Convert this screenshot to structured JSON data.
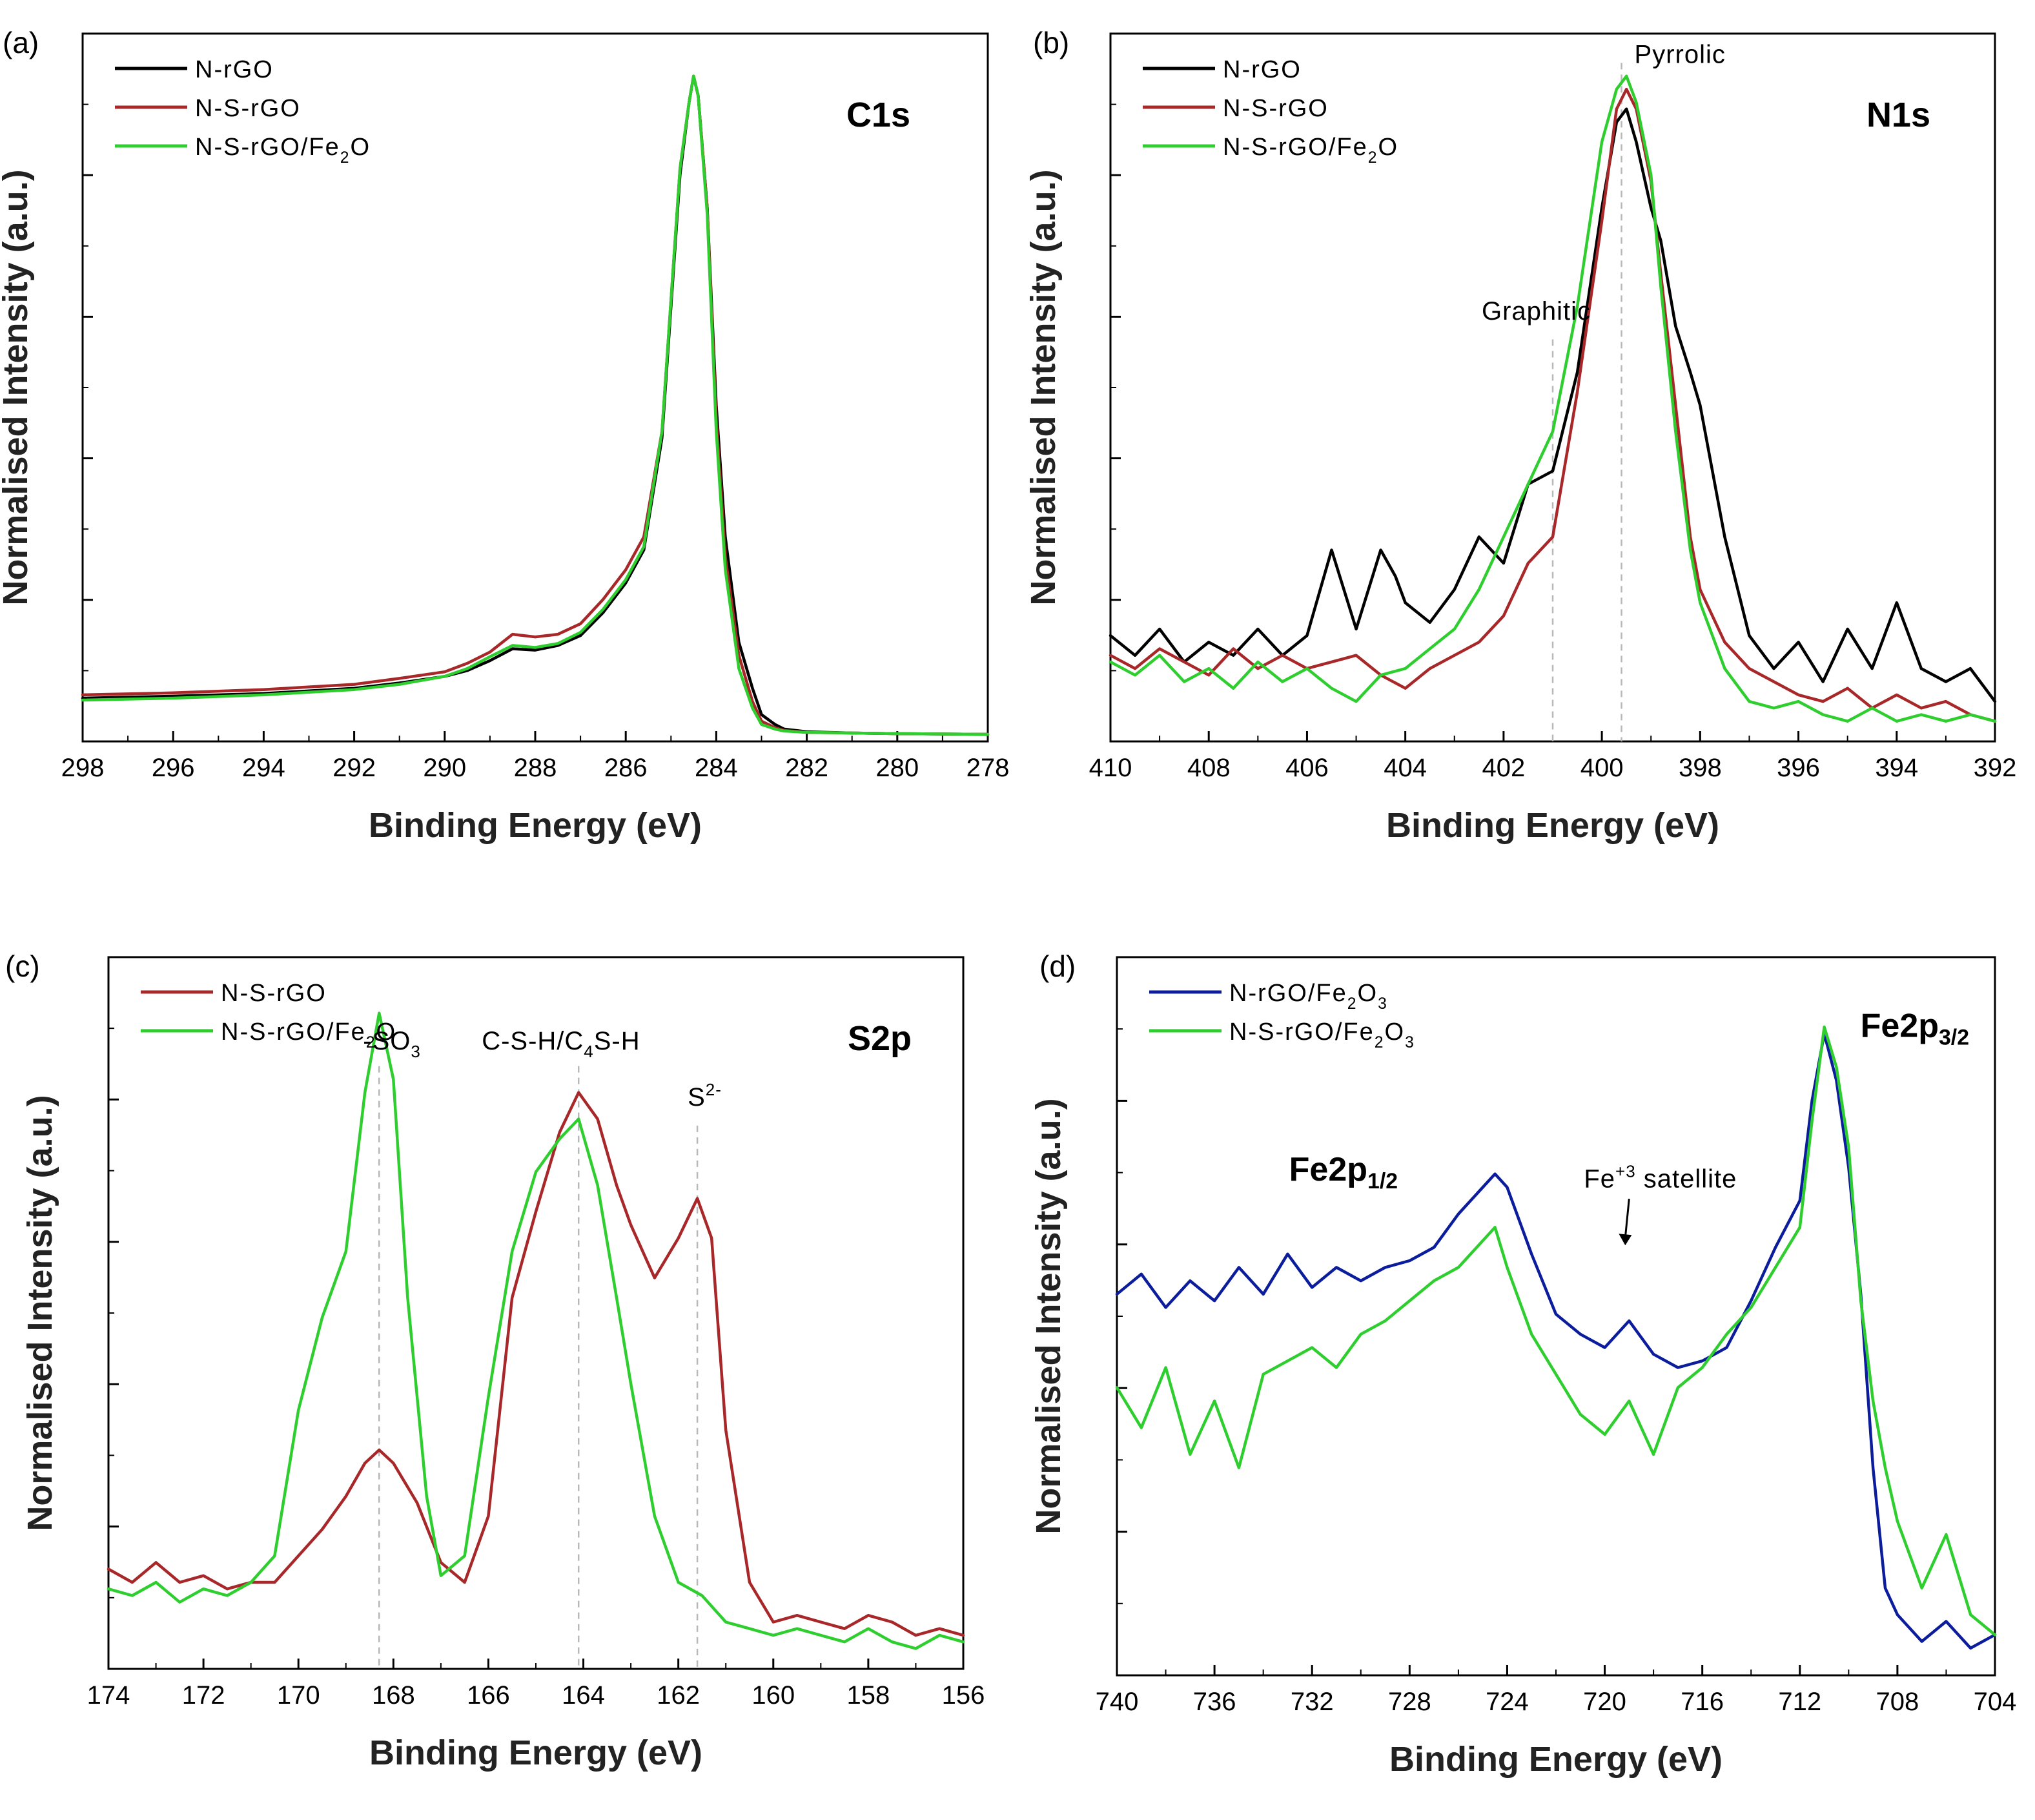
{
  "figure": {
    "panels": [
      {
        "panel_label": "(a)",
        "core_level": "C1s",
        "xlabel": "Binding Energy (eV)",
        "ylabel": "Normalised Intensity (a.u.)"
      },
      {
        "panel_label": "(b)",
        "core_level": "N1s",
        "xlabel": "Binding Energy (eV)",
        "ylabel": "Normalised Intensity (a.u.)"
      },
      {
        "panel_label": "(c)",
        "core_level": "S2p",
        "xlabel": "Binding Energy (eV)",
        "ylabel": "Normalised Intensity (a.u.)"
      },
      {
        "panel_label": "(d)",
        "core_level": "Fe2p3/2",
        "xlabel": "Binding Energy (eV)",
        "ylabel": "Normalised Intensity (a.u.)"
      }
    ]
  },
  "chart_data": [
    {
      "type": "line",
      "panel": "(a)",
      "title": "C1s",
      "xlabel": "Binding Energy (eV)",
      "ylabel": "Normalised Intensity (a.u.)",
      "xlim": [
        298,
        278
      ],
      "ylim": [
        0,
        1
      ],
      "xticks": [
        298,
        296,
        294,
        292,
        290,
        288,
        286,
        284,
        282,
        280,
        278
      ],
      "legend_position": "top-left",
      "series": [
        {
          "name": "N-rGO",
          "color": "#000000",
          "x": [
            298,
            296,
            294,
            292,
            291,
            290,
            289.5,
            289,
            288.5,
            288,
            287.5,
            287,
            286.5,
            286,
            285.6,
            285.2,
            285,
            284.8,
            284.6,
            284.5,
            284.4,
            284.2,
            284,
            283.8,
            283.5,
            283.2,
            283,
            282.7,
            282.5,
            282,
            281,
            280,
            278
          ],
          "y": [
            0.055,
            0.058,
            0.062,
            0.07,
            0.078,
            0.088,
            0.097,
            0.112,
            0.13,
            0.128,
            0.135,
            0.15,
            0.185,
            0.23,
            0.28,
            0.45,
            0.65,
            0.85,
            0.96,
            1.0,
            0.97,
            0.8,
            0.5,
            0.3,
            0.14,
            0.07,
            0.03,
            0.015,
            0.008,
            0.004,
            0.002,
            0.001,
            0.0
          ]
        },
        {
          "name": "N-S-rGO",
          "color": "#a8282a",
          "x": [
            298,
            296,
            294,
            292,
            291,
            290,
            289.5,
            289,
            288.5,
            288,
            287.5,
            287,
            286.5,
            286,
            285.6,
            285.2,
            285,
            284.8,
            284.6,
            284.5,
            284.4,
            284.2,
            284,
            283.8,
            283.5,
            283.2,
            283,
            282.7,
            282.5,
            282,
            281,
            280,
            278
          ],
          "y": [
            0.06,
            0.063,
            0.068,
            0.076,
            0.085,
            0.095,
            0.108,
            0.125,
            0.152,
            0.148,
            0.152,
            0.168,
            0.205,
            0.25,
            0.3,
            0.46,
            0.66,
            0.86,
            0.96,
            1.0,
            0.97,
            0.8,
            0.48,
            0.27,
            0.12,
            0.05,
            0.02,
            0.01,
            0.006,
            0.003,
            0.002,
            0.001,
            0.0
          ]
        },
        {
          "name": "N-S-rGO/Fe2O",
          "color": "#2fce2f",
          "x": [
            298,
            296,
            294,
            292,
            291,
            290,
            289.5,
            289,
            288.5,
            288,
            287.5,
            287,
            286.5,
            286,
            285.6,
            285.2,
            285,
            284.8,
            284.6,
            284.5,
            284.4,
            284.2,
            284,
            283.8,
            283.5,
            283.2,
            283,
            282.7,
            282.5,
            282,
            281,
            280,
            278
          ],
          "y": [
            0.052,
            0.055,
            0.06,
            0.068,
            0.076,
            0.088,
            0.1,
            0.118,
            0.135,
            0.132,
            0.138,
            0.155,
            0.19,
            0.235,
            0.285,
            0.46,
            0.66,
            0.86,
            0.96,
            1.0,
            0.97,
            0.79,
            0.46,
            0.25,
            0.1,
            0.04,
            0.015,
            0.008,
            0.005,
            0.003,
            0.002,
            0.001,
            0.0
          ]
        }
      ]
    },
    {
      "type": "line",
      "panel": "(b)",
      "title": "N1s",
      "xlabel": "Binding Energy (eV)",
      "ylabel": "Normalised Intensity (a.u.)",
      "xlim": [
        410,
        392
      ],
      "ylim": [
        0,
        1
      ],
      "xticks": [
        410,
        408,
        406,
        404,
        402,
        400,
        398,
        396,
        394,
        392
      ],
      "legend_position": "top-left",
      "annotations": [
        {
          "text": "Graphitic",
          "x": 401.0
        },
        {
          "text": "Pyrrolic",
          "x": 399.6
        }
      ],
      "series": [
        {
          "name": "N-rGO",
          "color": "#000000",
          "x": [
            410,
            409.5,
            409,
            408.5,
            408,
            407.5,
            407,
            406.5,
            406,
            405.5,
            405,
            404.5,
            404.2,
            404,
            403.5,
            403,
            402.5,
            402,
            401.5,
            401,
            400.5,
            400,
            399.7,
            399.5,
            399.3,
            399,
            398.8,
            398.5,
            398.2,
            398,
            397.5,
            397,
            396.5,
            396,
            395.5,
            395,
            394.5,
            394,
            393.5,
            393,
            392.5,
            392
          ],
          "y": [
            0.15,
            0.12,
            0.16,
            0.11,
            0.14,
            0.12,
            0.16,
            0.12,
            0.15,
            0.28,
            0.16,
            0.28,
            0.24,
            0.2,
            0.17,
            0.22,
            0.3,
            0.26,
            0.38,
            0.4,
            0.55,
            0.8,
            0.93,
            0.95,
            0.9,
            0.8,
            0.75,
            0.62,
            0.55,
            0.5,
            0.3,
            0.15,
            0.1,
            0.14,
            0.08,
            0.16,
            0.1,
            0.2,
            0.1,
            0.08,
            0.1,
            0.05
          ]
        },
        {
          "name": "N-S-rGO",
          "color": "#a8282a",
          "x": [
            410,
            409.5,
            409,
            408.5,
            408,
            407.5,
            407,
            406.5,
            406,
            405.5,
            405,
            404.5,
            404,
            403.5,
            403,
            402.5,
            402,
            401.5,
            401,
            400.5,
            400,
            399.7,
            399.5,
            399.3,
            399,
            398.8,
            398.5,
            398.2,
            398,
            397.5,
            397,
            396.5,
            396,
            395.5,
            395,
            394.5,
            394,
            393.5,
            393,
            392.5,
            392
          ],
          "y": [
            0.12,
            0.1,
            0.13,
            0.11,
            0.09,
            0.13,
            0.1,
            0.12,
            0.1,
            0.11,
            0.12,
            0.09,
            0.07,
            0.1,
            0.12,
            0.14,
            0.18,
            0.26,
            0.3,
            0.52,
            0.78,
            0.95,
            0.98,
            0.95,
            0.84,
            0.7,
            0.5,
            0.3,
            0.22,
            0.14,
            0.1,
            0.08,
            0.06,
            0.05,
            0.07,
            0.04,
            0.06,
            0.04,
            0.05,
            0.03,
            0.02
          ]
        },
        {
          "name": "N-S-rGO/Fe2O",
          "color": "#2fce2f",
          "x": [
            410,
            409.5,
            409,
            408.5,
            408,
            407.5,
            407,
            406.5,
            406,
            405.5,
            405,
            404.5,
            404,
            403.5,
            403,
            402.5,
            402,
            401.5,
            401,
            400.5,
            400,
            399.7,
            399.5,
            399.3,
            399,
            398.8,
            398.5,
            398.2,
            398,
            397.5,
            397,
            396.5,
            396,
            395.5,
            395,
            394.5,
            394,
            393.5,
            393,
            392.5,
            392
          ],
          "y": [
            0.11,
            0.09,
            0.12,
            0.08,
            0.1,
            0.07,
            0.11,
            0.08,
            0.1,
            0.07,
            0.05,
            0.09,
            0.1,
            0.13,
            0.16,
            0.22,
            0.3,
            0.38,
            0.46,
            0.65,
            0.9,
            0.98,
            1.0,
            0.96,
            0.85,
            0.68,
            0.46,
            0.28,
            0.2,
            0.1,
            0.05,
            0.04,
            0.05,
            0.03,
            0.02,
            0.04,
            0.02,
            0.03,
            0.02,
            0.03,
            0.02
          ]
        }
      ]
    },
    {
      "type": "line",
      "panel": "(c)",
      "title": "S2p",
      "xlabel": "Binding Energy (eV)",
      "ylabel": "Normalised Intensity (a.u.)",
      "xlim": [
        174,
        156
      ],
      "ylim": [
        0,
        1
      ],
      "xticks": [
        174,
        172,
        170,
        168,
        166,
        164,
        162,
        160,
        158,
        156
      ],
      "legend_position": "top-left",
      "annotations": [
        {
          "text": "-SO3",
          "x": 168.3
        },
        {
          "text": "C-S-H/C4S-H",
          "x": 164.1
        },
        {
          "text": "S2-",
          "x": 161.6
        }
      ],
      "series": [
        {
          "name": "N-S-rGO",
          "color": "#a8282a",
          "x": [
            174,
            173.5,
            173,
            172.5,
            172,
            171.5,
            171,
            170.5,
            170,
            169.5,
            169,
            168.6,
            168.3,
            168,
            167.5,
            167,
            166.5,
            166,
            165.5,
            165,
            164.5,
            164.1,
            163.7,
            163.3,
            163,
            162.5,
            162,
            161.6,
            161.3,
            161,
            160.5,
            160,
            159.5,
            159,
            158.5,
            158,
            157.5,
            157,
            156.5,
            156
          ],
          "y": [
            0.14,
            0.12,
            0.15,
            0.12,
            0.13,
            0.11,
            0.12,
            0.12,
            0.16,
            0.2,
            0.25,
            0.3,
            0.32,
            0.3,
            0.24,
            0.15,
            0.12,
            0.22,
            0.55,
            0.68,
            0.8,
            0.86,
            0.82,
            0.72,
            0.66,
            0.58,
            0.64,
            0.7,
            0.64,
            0.35,
            0.12,
            0.06,
            0.07,
            0.06,
            0.05,
            0.07,
            0.06,
            0.04,
            0.05,
            0.04
          ]
        },
        {
          "name": "N-S-rGO/Fe2O",
          "color": "#2fce2f",
          "x": [
            174,
            173.5,
            173,
            172.5,
            172,
            171.5,
            171,
            170.5,
            170,
            169.5,
            169,
            168.6,
            168.3,
            168,
            167.7,
            167.3,
            167,
            166.5,
            166,
            165.5,
            165,
            164.5,
            164.1,
            163.7,
            163.3,
            163,
            162.5,
            162,
            161.5,
            161,
            160.5,
            160,
            159.5,
            159,
            158.5,
            158,
            157.5,
            157,
            156.5,
            156
          ],
          "y": [
            0.11,
            0.1,
            0.12,
            0.09,
            0.11,
            0.1,
            0.12,
            0.16,
            0.38,
            0.52,
            0.62,
            0.86,
            0.98,
            0.88,
            0.55,
            0.25,
            0.13,
            0.16,
            0.4,
            0.62,
            0.74,
            0.79,
            0.82,
            0.72,
            0.55,
            0.42,
            0.22,
            0.12,
            0.1,
            0.06,
            0.05,
            0.04,
            0.05,
            0.04,
            0.03,
            0.05,
            0.03,
            0.02,
            0.04,
            0.03
          ]
        }
      ]
    },
    {
      "type": "line",
      "panel": "(d)",
      "title": "Fe2p3/2",
      "xlabel": "Binding Energy (eV)",
      "ylabel": "Normalised Intensity (a.u.)",
      "xlim": [
        740,
        704
      ],
      "ylim": [
        0,
        1
      ],
      "xticks": [
        740,
        736,
        732,
        728,
        724,
        720,
        716,
        712,
        708,
        704
      ],
      "legend_position": "top-left",
      "annotations": [
        {
          "text": "Fe2p1/2",
          "x": 725.0
        },
        {
          "text": "Fe+3 satellite",
          "x": 719.0
        },
        {
          "text": "Fe2p3/2",
          "x": 711.0
        }
      ],
      "series": [
        {
          "name": "N-rGO/Fe2O3",
          "color": "#0b1d9c",
          "x": [
            740,
            739,
            738,
            737,
            736,
            735,
            734,
            733,
            732,
            731,
            730,
            729,
            728,
            727,
            726,
            725,
            724.5,
            724,
            723,
            722,
            721,
            720,
            719,
            718,
            717,
            716,
            715,
            714,
            713,
            712,
            711.5,
            711,
            710.5,
            710,
            709.5,
            709,
            708.5,
            708,
            707,
            706,
            705,
            704
          ],
          "y": [
            0.56,
            0.59,
            0.54,
            0.58,
            0.55,
            0.6,
            0.56,
            0.62,
            0.57,
            0.6,
            0.58,
            0.6,
            0.61,
            0.63,
            0.68,
            0.72,
            0.74,
            0.72,
            0.62,
            0.53,
            0.5,
            0.48,
            0.52,
            0.47,
            0.45,
            0.46,
            0.48,
            0.55,
            0.63,
            0.7,
            0.85,
            0.95,
            0.88,
            0.75,
            0.56,
            0.3,
            0.12,
            0.08,
            0.04,
            0.07,
            0.03,
            0.05
          ]
        },
        {
          "name": "N-S-rGO/Fe2O3",
          "color": "#2fce2f",
          "x": [
            740,
            739,
            738,
            737,
            736,
            735,
            734,
            733,
            732,
            731,
            730,
            729,
            728,
            727,
            726,
            725,
            724.5,
            724,
            723,
            722,
            721,
            720,
            719,
            718,
            717,
            716,
            715,
            714,
            713,
            712,
            711.5,
            711,
            710.5,
            710,
            709.5,
            709,
            708.5,
            708,
            707,
            706,
            705,
            704
          ],
          "y": [
            0.42,
            0.36,
            0.45,
            0.32,
            0.4,
            0.3,
            0.44,
            0.46,
            0.48,
            0.45,
            0.5,
            0.52,
            0.55,
            0.58,
            0.6,
            0.64,
            0.66,
            0.6,
            0.5,
            0.44,
            0.38,
            0.35,
            0.4,
            0.32,
            0.42,
            0.45,
            0.5,
            0.54,
            0.6,
            0.66,
            0.82,
            0.96,
            0.9,
            0.78,
            0.55,
            0.4,
            0.3,
            0.22,
            0.12,
            0.2,
            0.08,
            0.05
          ]
        }
      ]
    }
  ]
}
